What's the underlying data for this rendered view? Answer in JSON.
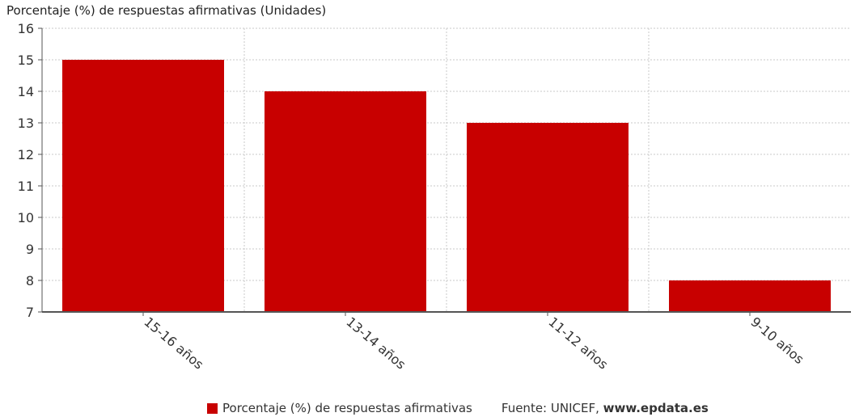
{
  "colors": {
    "bar": "#c80000",
    "grid": "#c8c8c8",
    "axis": "#555555"
  },
  "chart_data": {
    "type": "bar",
    "title": "Porcentaje (%) de respuestas afirmativas (Unidades)",
    "categories": [
      "15-16 años",
      "13-14 años",
      "11-12 años",
      "9-10 años"
    ],
    "series": [
      {
        "name": "Porcentaje (%) de respuestas afirmativas",
        "values": [
          15,
          14,
          13,
          8
        ]
      }
    ],
    "ylim": [
      7,
      16
    ],
    "yticks": [
      7,
      8,
      9,
      10,
      11,
      12,
      13,
      14,
      15,
      16
    ],
    "grid": true,
    "legend_position": "bottom"
  },
  "source": {
    "label": "Fuente: UNICEF,",
    "site": "www.epdata.es"
  }
}
